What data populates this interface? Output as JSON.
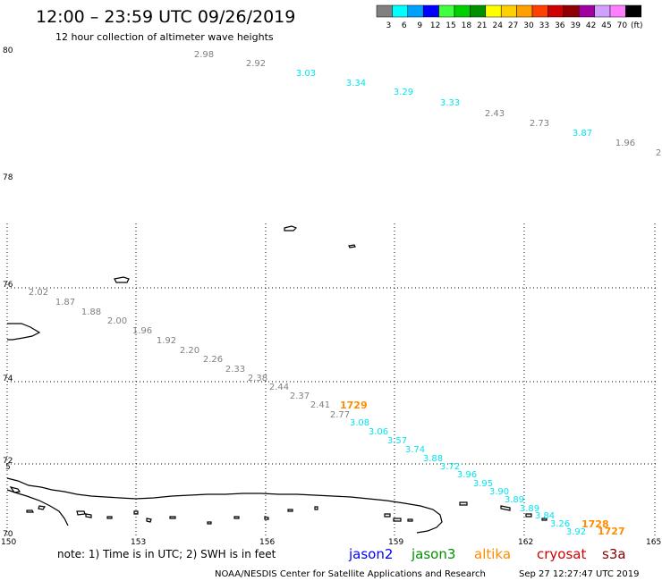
{
  "header": {
    "title": "12:00 – 23:59 UTC 09/26/2019",
    "subtitle": "12 hour collection of altimeter wave heights"
  },
  "legend": {
    "unit": "(ft)",
    "bins": [
      {
        "label": "3",
        "color": "#808080"
      },
      {
        "label": "6",
        "color": "#00ffff"
      },
      {
        "label": "9",
        "color": "#00a0ff"
      },
      {
        "label": "12",
        "color": "#0000ff"
      },
      {
        "label": "15",
        "color": "#40ff40"
      },
      {
        "label": "18",
        "color": "#00d000"
      },
      {
        "label": "21",
        "color": "#009000"
      },
      {
        "label": "24",
        "color": "#ffff00"
      },
      {
        "label": "27",
        "color": "#ffd000"
      },
      {
        "label": "30",
        "color": "#ffa000"
      },
      {
        "label": "33",
        "color": "#ff4000"
      },
      {
        "label": "36",
        "color": "#d00000"
      },
      {
        "label": "39",
        "color": "#900000"
      },
      {
        "label": "42",
        "color": "#a000a0"
      },
      {
        "label": "45",
        "color": "#d0a0ff"
      },
      {
        "label": "70",
        "color": "#ff80ff"
      },
      {
        "label": "",
        "color": "#000000"
      }
    ]
  },
  "map": {
    "lon_ticks": [
      "150",
      "153",
      "156",
      "159",
      "162",
      "165"
    ],
    "lat_ticks": [
      "80",
      "78",
      "76",
      "74",
      "72",
      "70"
    ],
    "extra_lat_label": "5",
    "tracks": [
      {
        "color": "#808080",
        "values": [
          "2.98",
          "2.92"
        ]
      },
      {
        "color": "#00e5ee",
        "values": [
          "3.03",
          "3.34",
          "3.29",
          "3.33"
        ]
      },
      {
        "color": "#808080",
        "values": [
          "2.43",
          "2.73"
        ]
      },
      {
        "color": "#00e5ee",
        "values": [
          "3.87"
        ]
      },
      {
        "color": "#808080",
        "values": [
          "1.96",
          "2"
        ]
      },
      {
        "color": "#808080",
        "values": [
          "2.02",
          "1.87",
          "1.88",
          "2.00",
          "1.96",
          "1.92",
          "2.20",
          "2.26",
          "2.33",
          "2.38",
          "2.44",
          "2.37",
          "2.41",
          "2.77"
        ]
      },
      {
        "color": "#00e5ee",
        "values": [
          "3.08",
          "3.06",
          "3.57",
          "3.74",
          "3.88",
          "3.72",
          "3.96",
          "3.95",
          "3.90",
          "3.89",
          "3.89",
          "3.84",
          "3.26",
          "3.92"
        ]
      }
    ],
    "time_labels": [
      "1729",
      "1728",
      "1727"
    ]
  },
  "note": "note:  1) Time is in UTC;  2) SWH is in feet",
  "satellites": [
    {
      "name": "jason2",
      "color": "#0000ff"
    },
    {
      "name": "jason3",
      "color": "#009000"
    },
    {
      "name": "altika",
      "color": "#ff8c00"
    },
    {
      "name": "cryosat",
      "color": "#d00000"
    },
    {
      "name": "s3a",
      "color": "#800000"
    }
  ],
  "footer": {
    "source": "NOAA/NESDIS Center for Satellite Applications and Research",
    "timestamp": "Sep 27 12:27:47 UTC 2019"
  }
}
